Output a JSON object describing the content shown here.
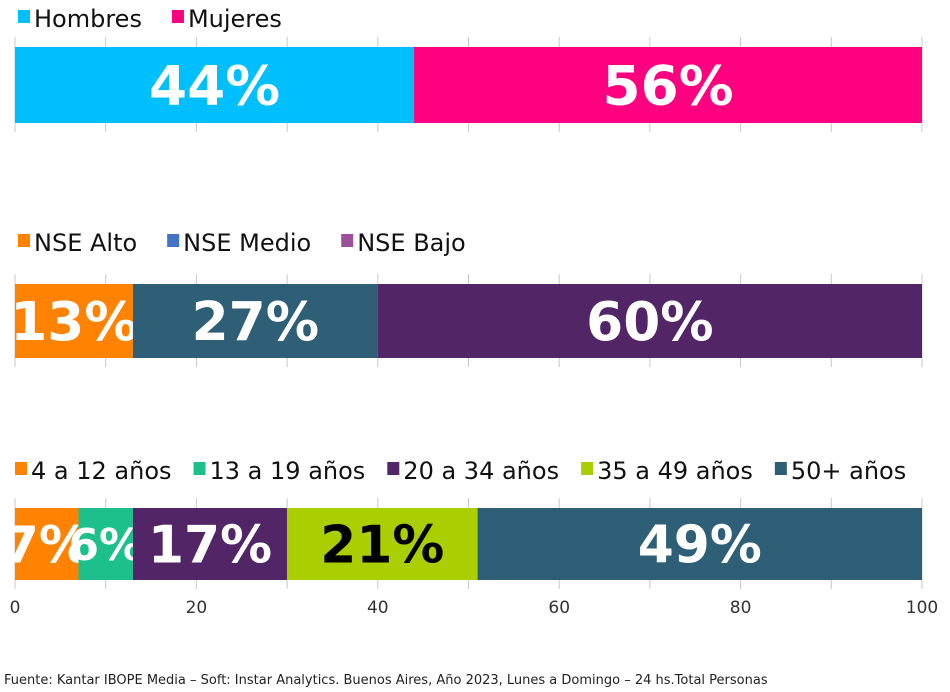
{
  "chart_data": [
    {
      "type": "bar",
      "orientation": "horizontal-stacked",
      "xlim": [
        0,
        100
      ],
      "series": [
        {
          "name": "Hombres",
          "values": [
            44
          ],
          "label": "44%",
          "color": "#00BFFF",
          "legend_color": "#00BFFF",
          "label_color": "#FFFFFF"
        },
        {
          "name": "Mujeres",
          "values": [
            56
          ],
          "label": "56%",
          "color": "#FF0080",
          "legend_color": "#FF0080",
          "label_color": "#FFFFFF"
        }
      ]
    },
    {
      "type": "bar",
      "orientation": "horizontal-stacked",
      "xlim": [
        0,
        100
      ],
      "series": [
        {
          "name": "NSE Alto",
          "values": [
            13
          ],
          "label": "13%",
          "color": "#FF8200",
          "legend_color": "#FF8200",
          "label_color": "#FFFFFF"
        },
        {
          "name": "NSE Medio",
          "values": [
            27
          ],
          "label": "27%",
          "color": "#2E5F77",
          "legend_color": "#4472C4",
          "label_color": "#FFFFFF"
        },
        {
          "name": "NSE Bajo",
          "values": [
            60
          ],
          "label": "60%",
          "color": "#512566",
          "legend_color": "#9E4F9A",
          "label_color": "#FFFFFF"
        }
      ]
    },
    {
      "type": "bar",
      "orientation": "horizontal-stacked",
      "xlim": [
        0,
        100
      ],
      "xticks": [
        "0",
        "20",
        "40",
        "60",
        "80",
        "100"
      ],
      "series": [
        {
          "name": "4 a 12 años",
          "values": [
            7
          ],
          "label": "7%",
          "color": "#FF8200",
          "legend_color": "#FF8200",
          "label_color": "#FFFFFF"
        },
        {
          "name": "13 a 19 años",
          "values": [
            6
          ],
          "label": "6%",
          "color": "#1DBF8A",
          "legend_color": "#1DBF8A",
          "label_color": "#FFFFFF"
        },
        {
          "name": "20 a 34 años",
          "values": [
            17
          ],
          "label": "17%",
          "color": "#512566",
          "legend_color": "#512566",
          "label_color": "#FFFFFF"
        },
        {
          "name": "35 a 49 años",
          "values": [
            21
          ],
          "label": "21%",
          "color": "#AACF00",
          "legend_color": "#AACF00",
          "label_color": "#000000"
        },
        {
          "name": "50+ años",
          "values": [
            49
          ],
          "label": "49%",
          "color": "#2E5F77",
          "legend_color": "#2E5F77",
          "label_color": "#FFFFFF"
        }
      ]
    }
  ],
  "source": "Fuente: Kantar IBOPE Media – Soft: Instar Analytics. Buenos Aires, Año 2023, Lunes a Domingo – 24 hs.Total Personas"
}
